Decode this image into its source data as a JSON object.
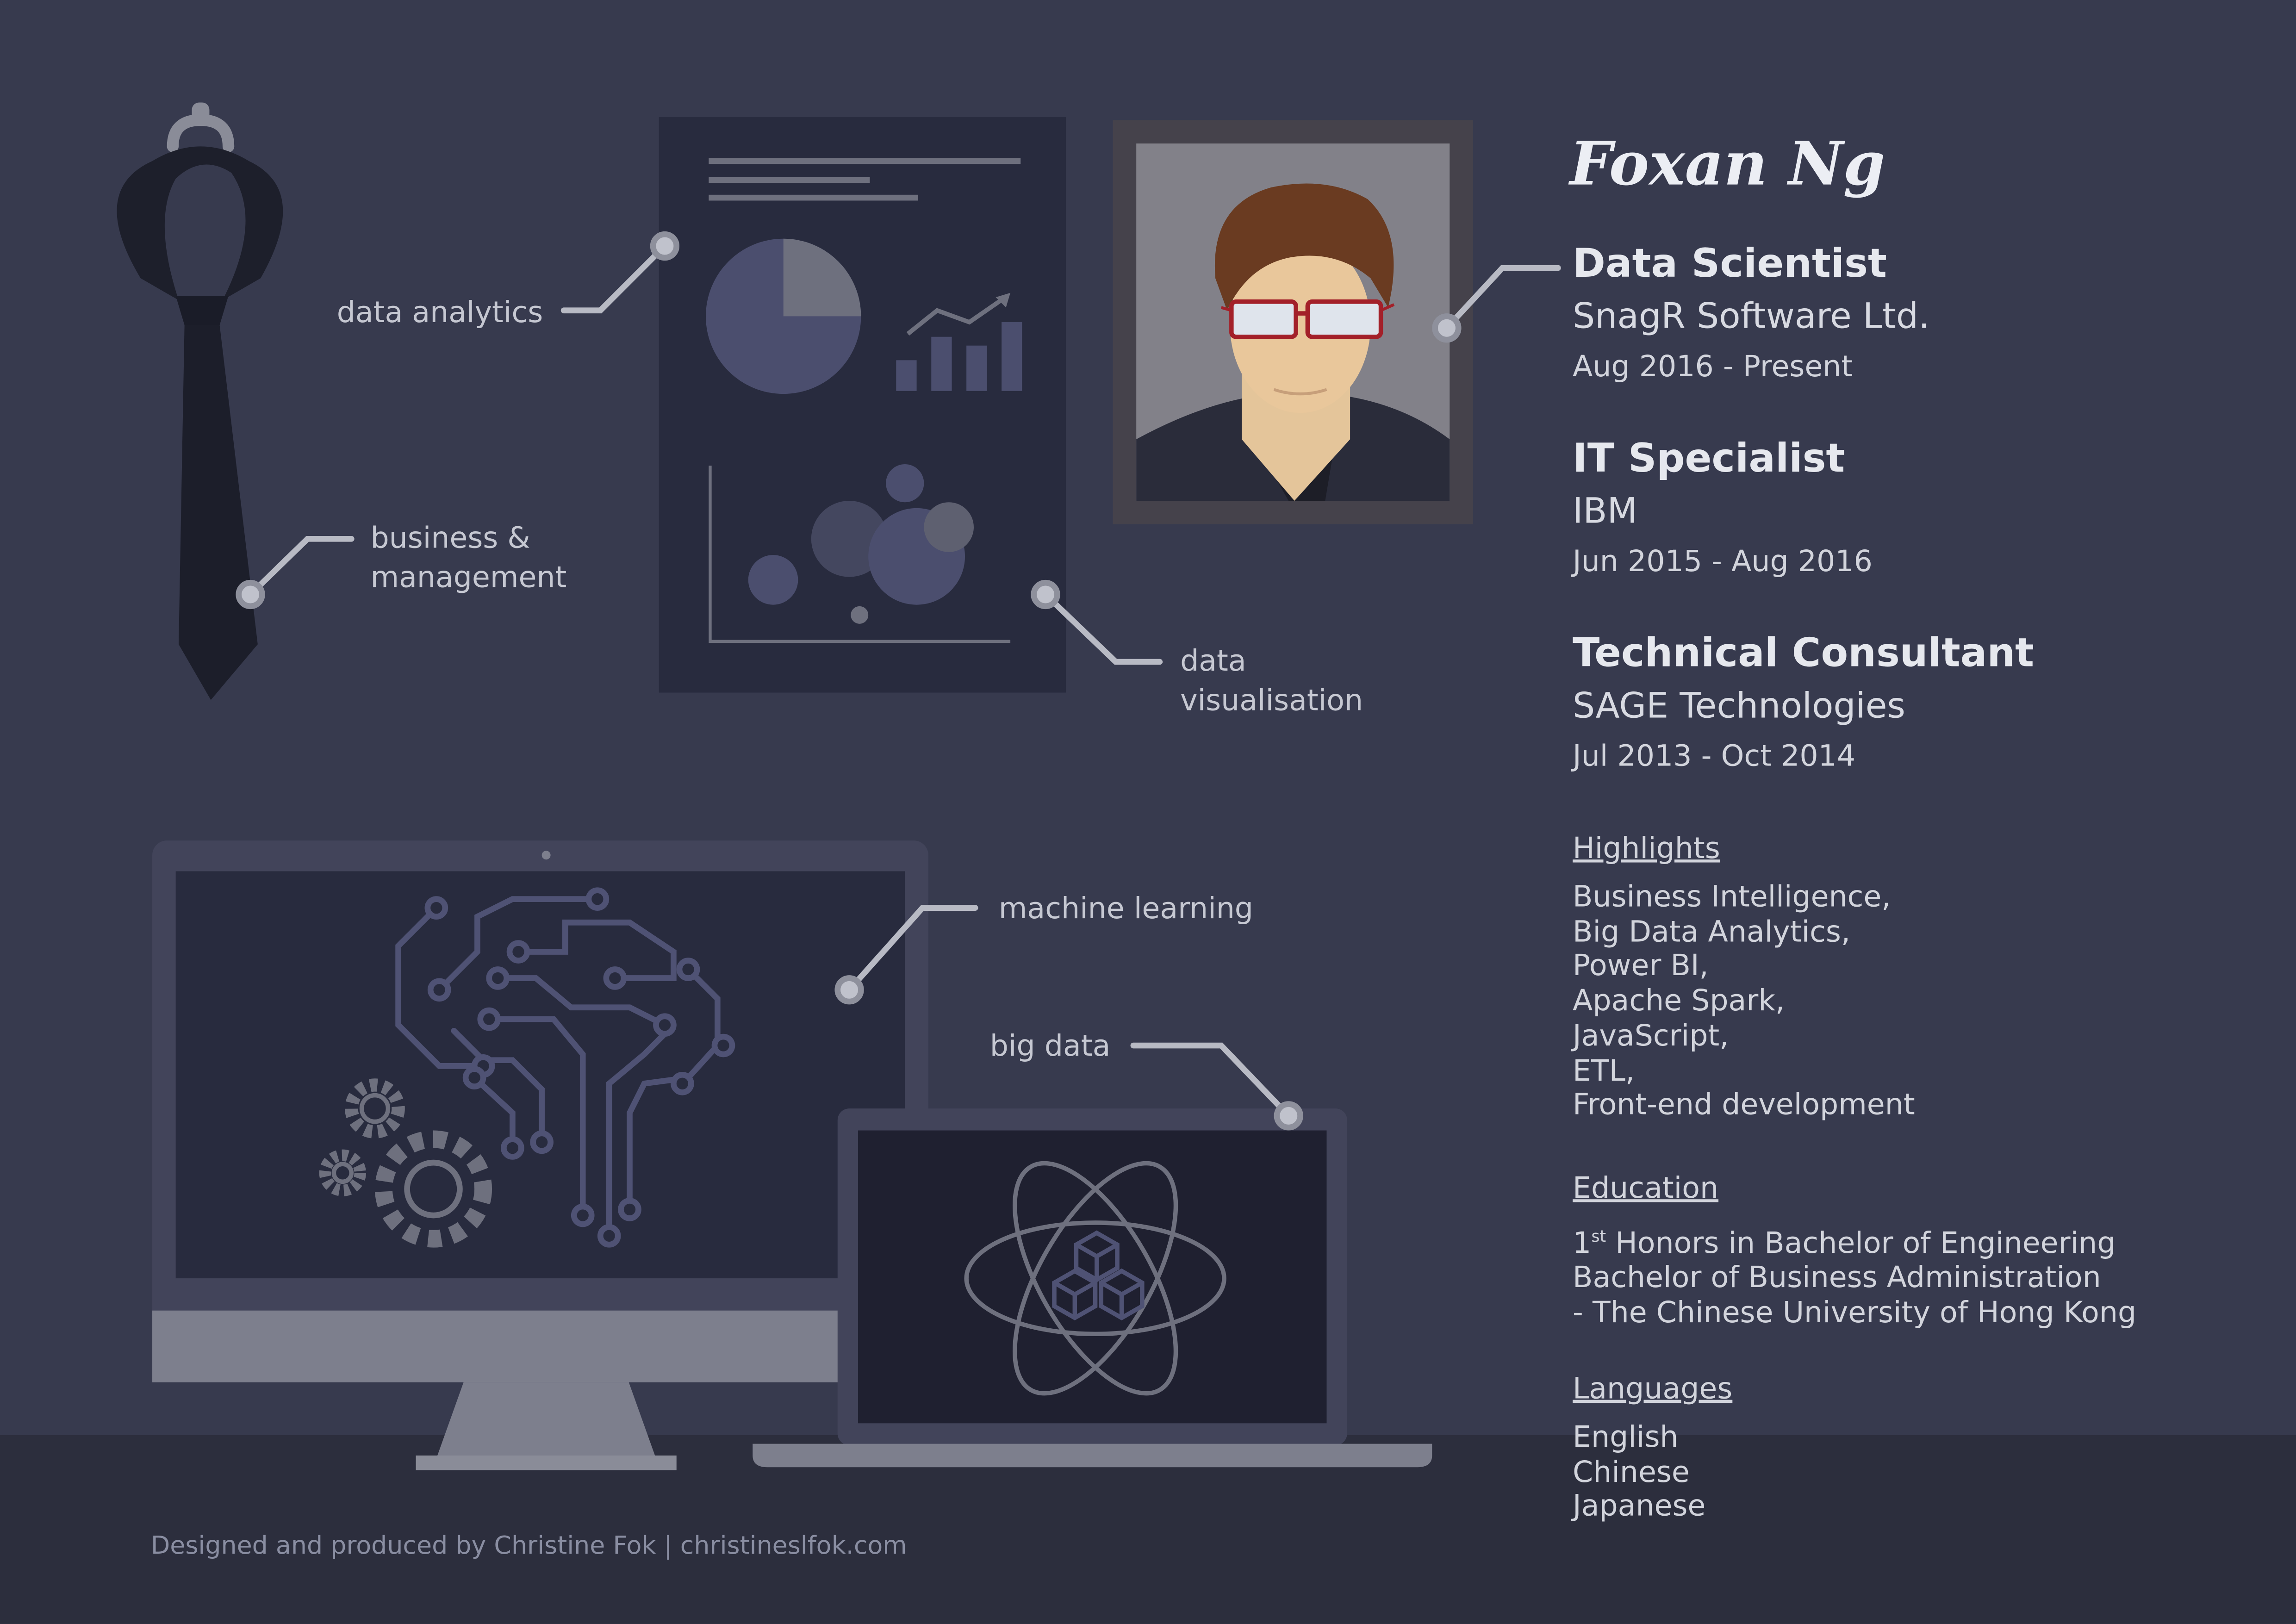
{
  "colors": {
    "background": "#373a4e",
    "floor": "#2c2e3d",
    "panel": "#282b3e",
    "screen": "#1f2030",
    "device_grey": "#7d7f8d",
    "text": "#d2d4dc",
    "accent_red": "#a32029"
  },
  "name": "Foxan Ng",
  "skill_labels": {
    "data_analytics": "data analytics",
    "business_1": "business &",
    "business_2": "management",
    "data_vis_1": "data",
    "data_vis_2": "visualisation",
    "machine_learning": "machine learning",
    "big_data": "big data"
  },
  "icons": {
    "tie": "necktie-icon",
    "report": "report-chart-icon",
    "portrait": "framed-portrait-icon",
    "brain": "circuit-brain-icon",
    "gears": "gears-icon",
    "atom": "atom-icon",
    "cubes": "cubes-icon",
    "desktop": "desktop-monitor-icon",
    "laptop": "laptop-icon"
  },
  "experience": [
    {
      "title": "Data Scientist",
      "company": "SnagR Software Ltd.",
      "dates": "Aug 2016 - Present"
    },
    {
      "title": "IT Specialist",
      "company": "IBM",
      "dates": "Jun 2015 - Aug 2016"
    },
    {
      "title": "Technical Consultant",
      "company": "SAGE Technologies",
      "dates": "Jul 2013 - Oct 2014"
    }
  ],
  "highlights": {
    "heading": "Highlights",
    "items": [
      "Business Intelligence,",
      "Big Data Analytics,",
      "Power BI,",
      "Apache Spark,",
      "JavaScript,",
      "ETL,",
      "Front-end development"
    ]
  },
  "education": {
    "heading": "Education",
    "degree1_ordinal": "1",
    "degree1_sup": "st",
    "degree1_rest": " Honors in Bachelor of Engineering",
    "degree2": "Bachelor of Business Administration",
    "university": "- The Chinese University of Hong Kong"
  },
  "languages": {
    "heading": "Languages",
    "items": [
      "English",
      "Chinese",
      "Japanese"
    ]
  },
  "credit": "Designed and produced by Christine Fok | christineslfok.com"
}
